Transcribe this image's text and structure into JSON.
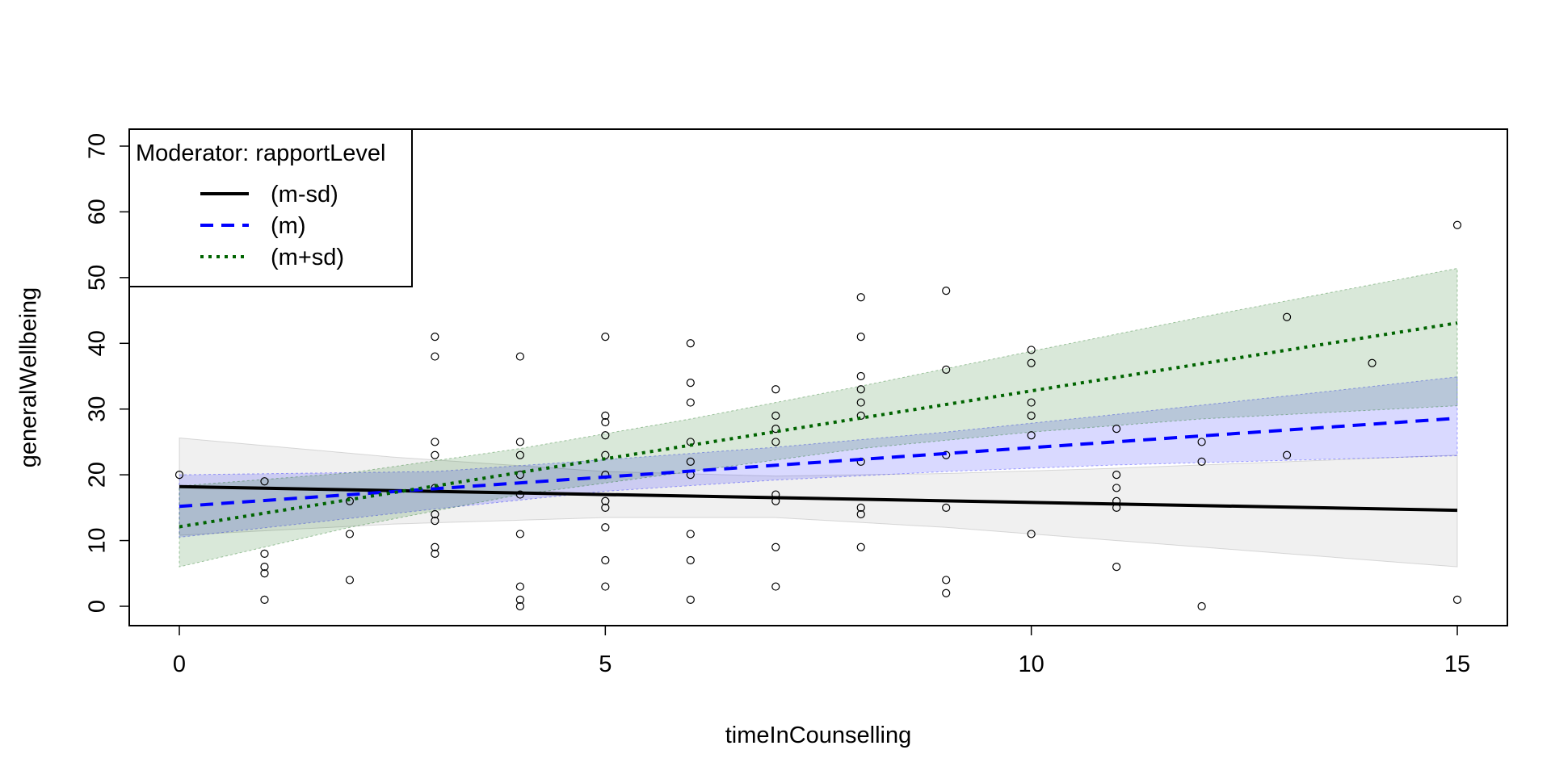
{
  "chart_data": {
    "type": "line",
    "xlabel": "timeInCounselling",
    "ylabel": "generalWellbeing",
    "xlim": [
      0,
      15
    ],
    "ylim": [
      0,
      70
    ],
    "xticks": [
      0,
      5,
      10,
      15
    ],
    "yticks": [
      0,
      10,
      20,
      30,
      40,
      50,
      60,
      70
    ],
    "grid": false,
    "legend": {
      "title": "Moderator: rapportLevel",
      "position": "top-left",
      "entries": [
        "(m-sd)",
        "(m)",
        "(m+sd)"
      ]
    },
    "series": [
      {
        "name": "(m-sd)",
        "color": "#000000",
        "dash": "solid",
        "band_color": "#999999",
        "x": [
          0,
          15
        ],
        "y": [
          18.2,
          14.6
        ],
        "ci_lower": [
          [
            0,
            10.8
          ],
          [
            2.5,
            12.5
          ],
          [
            5,
            13.5
          ],
          [
            7,
            13.5
          ],
          [
            9,
            12
          ],
          [
            11,
            10
          ],
          [
            13,
            8
          ],
          [
            15,
            6
          ]
        ],
        "ci_upper": [
          [
            0,
            25.6
          ],
          [
            2.5,
            22.7
          ],
          [
            5,
            20.5
          ],
          [
            7,
            19.8
          ],
          [
            9,
            20.2
          ],
          [
            11,
            21
          ],
          [
            13,
            22
          ],
          [
            15,
            23
          ]
        ]
      },
      {
        "name": "(m)",
        "color": "#0000FF",
        "dash": "dashed",
        "band_color": "#0000FF",
        "x": [
          0,
          15
        ],
        "y": [
          15.2,
          28.6
        ],
        "ci_lower": [
          [
            0,
            10.5
          ],
          [
            3,
            14.8
          ],
          [
            5,
            17.5
          ],
          [
            7,
            19.2
          ],
          [
            9,
            20.5
          ],
          [
            11,
            21.5
          ],
          [
            13,
            22.2
          ],
          [
            15,
            22.9
          ]
        ],
        "ci_upper": [
          [
            0,
            20
          ],
          [
            3,
            20.5
          ],
          [
            5,
            22.3
          ],
          [
            7,
            24.2
          ],
          [
            9,
            26.5
          ],
          [
            11,
            29.2
          ],
          [
            13,
            32
          ],
          [
            15,
            34.9
          ]
        ]
      },
      {
        "name": "(m+sd)",
        "color": "#006400",
        "dash": "dotted",
        "band_color": "#006400",
        "x": [
          0,
          15
        ],
        "y": [
          12.1,
          43.1
        ],
        "ci_lower": [
          [
            0,
            6
          ],
          [
            2,
            12
          ],
          [
            4,
            17
          ],
          [
            6,
            20.5
          ],
          [
            8,
            24
          ],
          [
            10,
            26.5
          ],
          [
            12,
            28.5
          ],
          [
            15,
            30.5
          ]
        ],
        "ci_upper": [
          [
            0,
            18.3
          ],
          [
            2,
            20.3
          ],
          [
            4,
            24
          ],
          [
            6,
            28.5
          ],
          [
            8,
            33.5
          ],
          [
            10,
            38.8
          ],
          [
            12,
            44
          ],
          [
            15,
            51.4
          ]
        ]
      }
    ],
    "points": [
      [
        0,
        20
      ],
      [
        1,
        19
      ],
      [
        1,
        8
      ],
      [
        1,
        6
      ],
      [
        1,
        5
      ],
      [
        1,
        1
      ],
      [
        2,
        16
      ],
      [
        2,
        11
      ],
      [
        2,
        4
      ],
      [
        3,
        41
      ],
      [
        3,
        38
      ],
      [
        3,
        25
      ],
      [
        3,
        23
      ],
      [
        3,
        18
      ],
      [
        3,
        14
      ],
      [
        3,
        13
      ],
      [
        3,
        9
      ],
      [
        3,
        8
      ],
      [
        4,
        38
      ],
      [
        4,
        25
      ],
      [
        4,
        23
      ],
      [
        4,
        20
      ],
      [
        4,
        17
      ],
      [
        4,
        11
      ],
      [
        4,
        3
      ],
      [
        4,
        1
      ],
      [
        4,
        0
      ],
      [
        5,
        41
      ],
      [
        5,
        29
      ],
      [
        5,
        28
      ],
      [
        5,
        26
      ],
      [
        5,
        23
      ],
      [
        5,
        20
      ],
      [
        5,
        16
      ],
      [
        5,
        15
      ],
      [
        5,
        12
      ],
      [
        5,
        7
      ],
      [
        5,
        3
      ],
      [
        6,
        40
      ],
      [
        6,
        34
      ],
      [
        6,
        31
      ],
      [
        6,
        25
      ],
      [
        6,
        22
      ],
      [
        6,
        20
      ],
      [
        6,
        11
      ],
      [
        6,
        7
      ],
      [
        6,
        1
      ],
      [
        7,
        33
      ],
      [
        7,
        29
      ],
      [
        7,
        27
      ],
      [
        7,
        25
      ],
      [
        7,
        17
      ],
      [
        7,
        16
      ],
      [
        7,
        9
      ],
      [
        7,
        3
      ],
      [
        8,
        47
      ],
      [
        8,
        41
      ],
      [
        8,
        35
      ],
      [
        8,
        33
      ],
      [
        8,
        31
      ],
      [
        8,
        29
      ],
      [
        8,
        22
      ],
      [
        8,
        15
      ],
      [
        8,
        14
      ],
      [
        8,
        9
      ],
      [
        9,
        48
      ],
      [
        9,
        36
      ],
      [
        9,
        23
      ],
      [
        9,
        15
      ],
      [
        9,
        4
      ],
      [
        9,
        2
      ],
      [
        10,
        39
      ],
      [
        10,
        37
      ],
      [
        10,
        31
      ],
      [
        10,
        29
      ],
      [
        10,
        26
      ],
      [
        10,
        11
      ],
      [
        11,
        27
      ],
      [
        11,
        20
      ],
      [
        11,
        18
      ],
      [
        11,
        16
      ],
      [
        11,
        15
      ],
      [
        11,
        6
      ],
      [
        12,
        25
      ],
      [
        12,
        22
      ],
      [
        12,
        0
      ],
      [
        13,
        44
      ],
      [
        13,
        23
      ],
      [
        14,
        37
      ],
      [
        15,
        58
      ],
      [
        15,
        1
      ]
    ]
  }
}
